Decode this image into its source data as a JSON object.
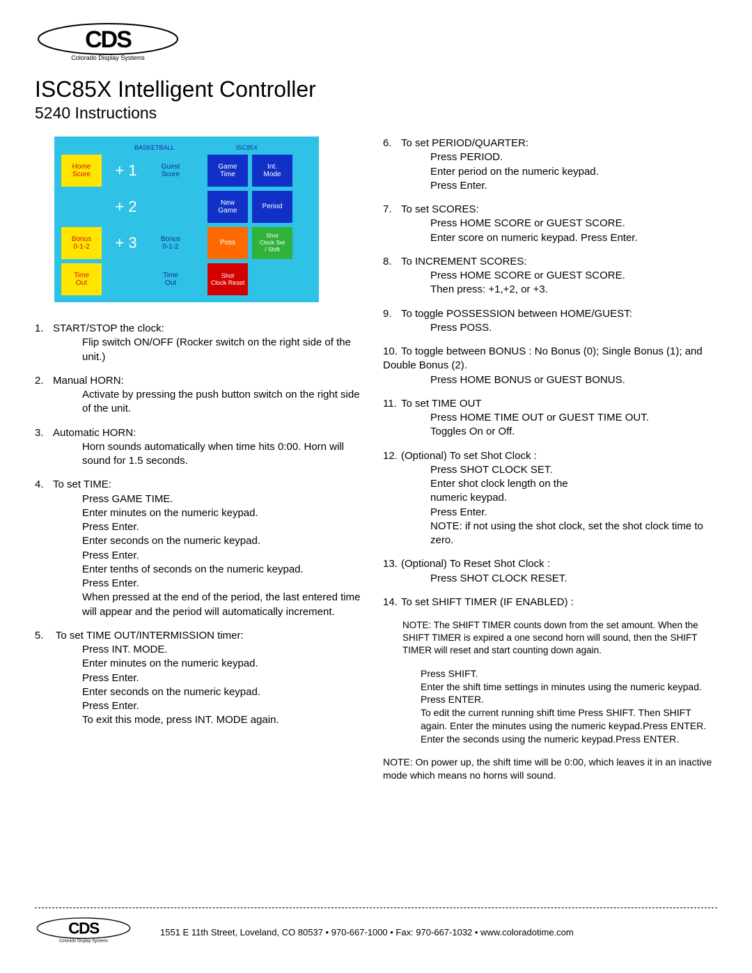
{
  "brand": {
    "name": "Colorado Display Systems",
    "abbrev": "CDS"
  },
  "title": "ISC85X Intelligent Controller",
  "subtitle": "5240 Instructions",
  "keypad": {
    "background_color": "#2fc2e6",
    "header_left": "BASKETBALL",
    "header_right": "ISC85X",
    "colors": {
      "yellow": "#ffe500",
      "cyan": "#2fc2e6",
      "blue": "#1030c8",
      "orange": "#ff6a00",
      "green": "#2fb23a",
      "red": "#d40000"
    },
    "rows": [
      [
        {
          "label": "Home\nScore",
          "color": "yellow"
        },
        {
          "label": "+ 1",
          "color": "cyan-big"
        },
        {
          "label": "Guest\nScore",
          "color": "cyan"
        },
        null,
        {
          "label": "Game\nTime",
          "color": "blue"
        },
        {
          "label": "Int.\nMode",
          "color": "blue"
        }
      ],
      [
        {
          "label": "",
          "color": "cyan"
        },
        {
          "label": "+ 2",
          "color": "cyan-big"
        },
        {
          "label": "",
          "color": "cyan"
        },
        null,
        {
          "label": "New\nGame",
          "color": "blue"
        },
        {
          "label": "Period",
          "color": "blue"
        }
      ],
      [
        {
          "label": "Bonus\n0-1-2",
          "color": "yellow"
        },
        {
          "label": "+ 3",
          "color": "cyan-big"
        },
        {
          "label": "Bonus\n0-1-2",
          "color": "cyan"
        },
        null,
        {
          "label": "Poss",
          "color": "orange"
        },
        {
          "label": "Shot\nClock Set\n/ Shift",
          "color": "green"
        }
      ],
      [
        {
          "label": "Time\nOut",
          "color": "yellow"
        },
        {
          "label": "",
          "color": "cyan"
        },
        {
          "label": "Time\nOut",
          "color": "cyan"
        },
        null,
        {
          "label": "Shot\nClock Reset",
          "color": "red"
        },
        {
          "label": "",
          "color": "cyan-empty"
        }
      ]
    ]
  },
  "instructions_left": [
    {
      "n": "1.",
      "head": "START/STOP the clock:",
      "body": "Flip switch ON/OFF (Rocker switch on the right side of the unit.)"
    },
    {
      "n": "2.",
      "head": "Manual HORN:",
      "body": " Activate by pressing the push button switch on the right side of the unit."
    },
    {
      "n": "3.",
      "head": "Automatic HORN:",
      "body": "Horn sounds automatically when time hits 0:00. Horn will sound for 1.5 seconds."
    },
    {
      "n": "4.",
      "head": "To set TIME:",
      "body": "Press GAME TIME.\n Enter  minutes  on the numeric keypad.\n Press Enter.\n Enter  seconds  on the numeric keypad.\n Press Enter.\n Enter  tenths of seconds  on the numeric keypad.\n Press Enter.\nWhen pressed at the end of the period, the last entered time will appear and the period will automatically increment."
    },
    {
      "n": "5.",
      "head": " To set TIME OUT/INTERMISSION timer:",
      "body": "Press INT. MODE.\n Enter  minutes  on the numeric keypad.\n Press Enter.\n Enter  seconds  on the numeric keypad.\n Press Enter.\n To exit this mode, press INT. MODE again."
    }
  ],
  "instructions_right": [
    {
      "n": "6.",
      "head": "To set PERIOD/QUARTER:",
      "body": "Press PERIOD.\n Enter period on the numeric keypad.\n Press Enter."
    },
    {
      "n": "7.",
      "head": "To set SCORES:",
      "body": "Press HOME SCORE or GUEST SCORE.\nEnter score on numeric keypad. Press Enter."
    },
    {
      "n": "8.",
      "head": "To INCREMENT SCORES:",
      "body": "Press HOME SCORE or GUEST SCORE.\nThen press: +1,+2, or +3."
    },
    {
      "n": "9.",
      "head": "To toggle POSSESSION between HOME/GUEST:",
      "body": "Press POSS."
    },
    {
      "n": "10.",
      "head": "To toggle between  BONUS  : No Bonus (0); Single Bonus (1); and Double Bonus (2).",
      "body": "Press HOME BONUS or GUEST BONUS."
    },
    {
      "n": "11.",
      "head": "To set TIME OUT",
      "body": "Press HOME TIME OUT or GUEST TIME OUT.\nToggles On or Off."
    },
    {
      "n": "12.",
      "head": "(Optional) To set Shot Clock :",
      "body": "Press SHOT CLOCK SET.\n Enter  shot clock  length on the\nnumeric keypad.\n Press Enter.\n NOTE: if not using the shot clock, set the shot clock time to zero."
    },
    {
      "n": "13.",
      "head": "(Optional) To Reset Shot Clock :",
      "body": "Press SHOT CLOCK RESET."
    },
    {
      "n": "14.",
      "head": "To set SHIFT TIMER (IF ENABLED) :",
      "body": ""
    }
  ],
  "shift_note1": "NOTE: The SHIFT TIMER counts down from the set amount. When the SHIFT TIMER is expired a one second horn will sound, then the SHIFT TIMER will reset and start counting down again.",
  "shift_body": " Press SHIFT.\n Enter the shift time settings in minutes using the numeric keypad. Press ENTER.\n To edit the current running shift time Press SHIFT. Then SHIFT again. Enter the minutes using the numeric keypad.Press ENTER. Enter the seconds using the numeric keypad.Press ENTER.",
  "shift_note2": "NOTE: On power up, the shift time will be 0:00, which leaves it in an inactive mode which means no horns will sound.",
  "footer": "1551 E 11th Street, Loveland, CO 80537 • 970-667-1000 • Fax: 970-667-1032 • www.coloradotime.com"
}
